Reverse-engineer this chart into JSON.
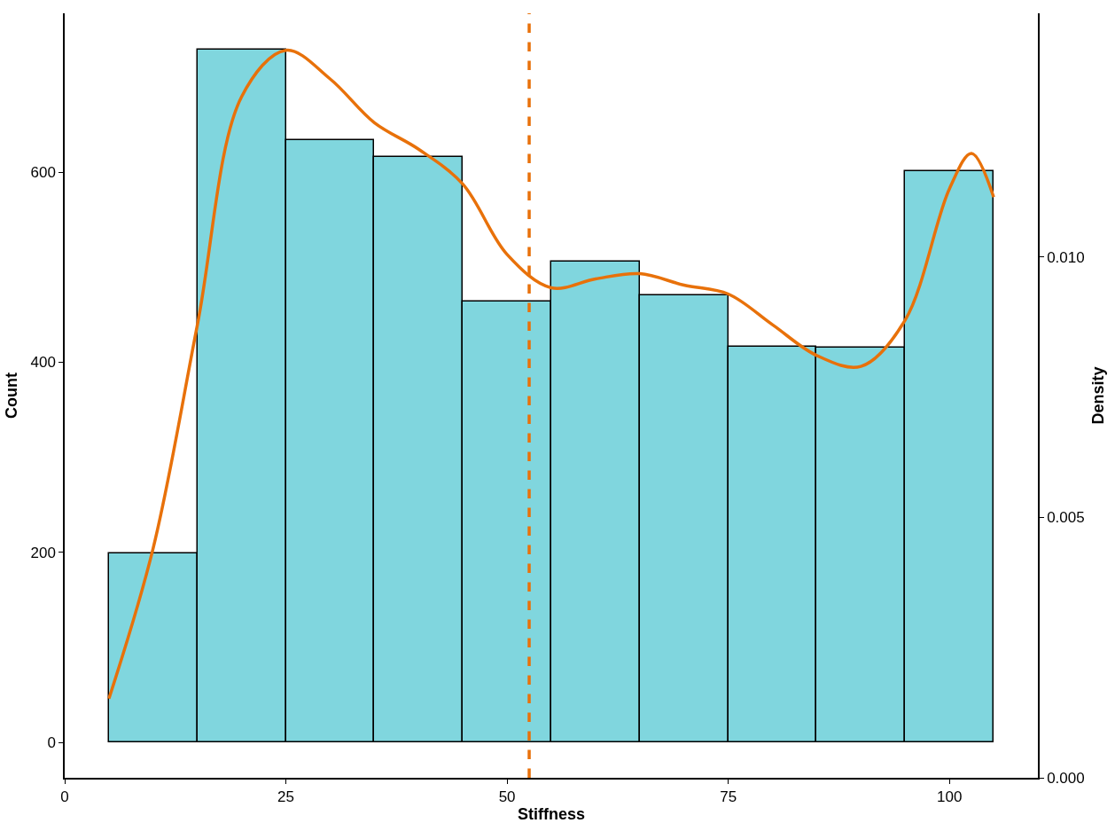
{
  "chart_data": {
    "type": "histogram",
    "xlabel": "Stiffness",
    "ylabel": "Count",
    "y2label": "Density",
    "bins": [
      5,
      15,
      25,
      35,
      45,
      55,
      65,
      75,
      85,
      95,
      105
    ],
    "values": [
      199,
      729,
      634,
      616,
      464,
      506,
      470,
      416,
      415,
      601
    ],
    "color": "#80d6de",
    "series": [
      {
        "type": "line",
        "axis": "y2",
        "color": "#e8710a",
        "x": [
          5,
          10,
          15,
          20,
          25,
          30,
          35,
          40,
          45,
          50,
          55,
          60,
          65,
          70,
          75,
          80,
          85,
          90,
          95,
          100,
          102.5,
          105
        ],
        "values": [
          0.00152,
          0.00441,
          0.0087,
          0.01308,
          0.01397,
          0.01342,
          0.01258,
          0.01207,
          0.0114,
          0.01005,
          0.00941,
          0.00958,
          0.00968,
          0.00946,
          0.00929,
          0.0087,
          0.00811,
          0.0079,
          0.00879,
          0.01131,
          0.01199,
          0.01115
        ]
      }
    ],
    "ref_lines": [
      {
        "axis": "x",
        "value": 52.5,
        "color": "#e8710a",
        "line_style": "dashed"
      }
    ],
    "xlim": [
      0,
      110
    ],
    "xticks": [
      0,
      25,
      50,
      75,
      100
    ],
    "ylim": [
      -37,
      767
    ],
    "yticks": [
      0,
      200,
      400,
      600
    ],
    "y2lim": [
      0,
      0.01468
    ],
    "y2ticks": [
      {
        "value": 0,
        "label": "0.000"
      },
      {
        "value": 0.005,
        "label": "0.005"
      },
      {
        "value": 0.01,
        "label": "0.010"
      }
    ]
  }
}
